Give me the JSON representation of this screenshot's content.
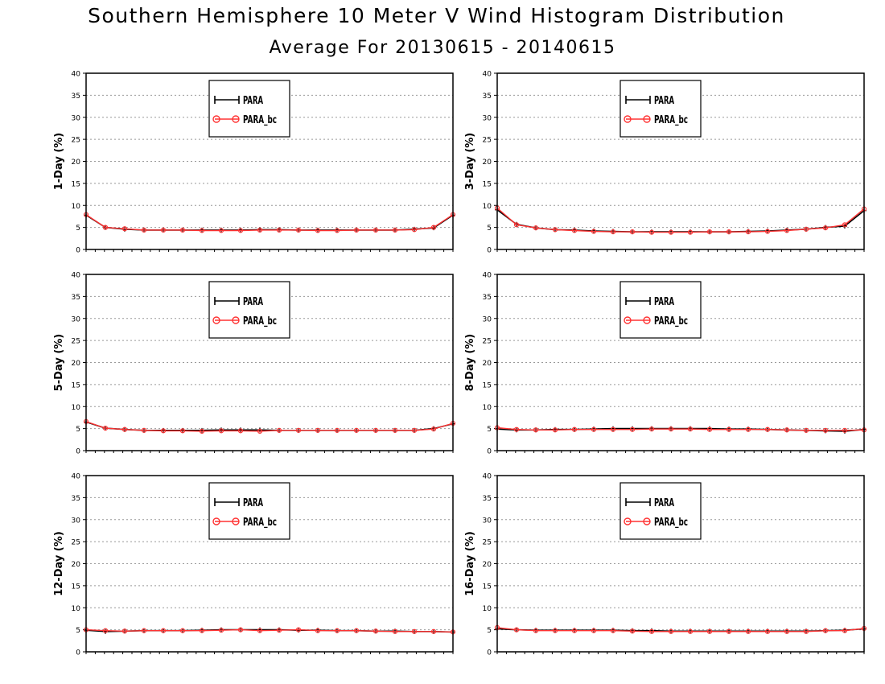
{
  "title": "Southern Hemisphere 10 Meter V Wind Histogram Distribution",
  "subtitle": "Average For 20130615 - 20140615",
  "colors": {
    "para": "#000000",
    "para_bc": "#ff3333",
    "grid": "#999999"
  },
  "chart_data": [
    {
      "type": "line",
      "ylabel": "1-Day (%)",
      "ylim": [
        0,
        40
      ],
      "yticks": [
        0,
        5,
        10,
        15,
        20,
        25,
        30,
        35,
        40
      ],
      "grid": true,
      "legend": "top-center",
      "series": [
        {
          "name": "PARA",
          "values": [
            7.8,
            5.0,
            4.6,
            4.4,
            4.4,
            4.4,
            4.4,
            4.4,
            4.4,
            4.5,
            4.5,
            4.4,
            4.4,
            4.4,
            4.4,
            4.4,
            4.4,
            4.6,
            4.9,
            7.8
          ]
        },
        {
          "name": "PARA_bc",
          "values": [
            7.9,
            5.0,
            4.7,
            4.4,
            4.4,
            4.4,
            4.3,
            4.3,
            4.3,
            4.4,
            4.4,
            4.4,
            4.3,
            4.3,
            4.4,
            4.4,
            4.4,
            4.5,
            5.0,
            7.9
          ]
        }
      ]
    },
    {
      "type": "line",
      "ylabel": "3-Day (%)",
      "ylim": [
        0,
        40
      ],
      "yticks": [
        0,
        5,
        10,
        15,
        20,
        25,
        30,
        35,
        40
      ],
      "grid": true,
      "legend": "top-center",
      "series": [
        {
          "name": "PARA",
          "values": [
            9.0,
            5.7,
            4.9,
            4.5,
            4.4,
            4.2,
            4.1,
            4.0,
            4.0,
            4.0,
            4.0,
            4.0,
            4.0,
            4.1,
            4.2,
            4.4,
            4.6,
            5.0,
            5.3,
            8.8
          ]
        },
        {
          "name": "PARA_bc",
          "values": [
            9.4,
            5.6,
            4.9,
            4.5,
            4.3,
            4.1,
            4.0,
            4.0,
            3.9,
            3.9,
            3.9,
            4.0,
            4.0,
            4.0,
            4.1,
            4.3,
            4.6,
            4.9,
            5.6,
            9.2
          ]
        }
      ]
    },
    {
      "type": "line",
      "ylabel": "5-Day (%)",
      "ylim": [
        0,
        40
      ],
      "yticks": [
        0,
        5,
        10,
        15,
        20,
        25,
        30,
        35,
        40
      ],
      "grid": true,
      "legend": "top-center",
      "series": [
        {
          "name": "PARA",
          "values": [
            6.5,
            5.1,
            4.8,
            4.6,
            4.6,
            4.6,
            4.6,
            4.7,
            4.7,
            4.7,
            4.6,
            4.6,
            4.6,
            4.6,
            4.6,
            4.6,
            4.6,
            4.6,
            5.0,
            6.1
          ]
        },
        {
          "name": "PARA_bc",
          "values": [
            6.6,
            5.1,
            4.8,
            4.6,
            4.5,
            4.5,
            4.4,
            4.5,
            4.5,
            4.4,
            4.6,
            4.6,
            4.6,
            4.6,
            4.6,
            4.6,
            4.6,
            4.6,
            4.9,
            6.2
          ]
        }
      ]
    },
    {
      "type": "line",
      "ylabel": "8-Day (%)",
      "ylim": [
        0,
        40
      ],
      "yticks": [
        0,
        5,
        10,
        15,
        20,
        25,
        30,
        35,
        40
      ],
      "grid": true,
      "legend": "top-center",
      "series": [
        {
          "name": "PARA",
          "values": [
            4.9,
            4.7,
            4.7,
            4.8,
            4.8,
            4.9,
            5.0,
            5.0,
            5.0,
            5.0,
            5.0,
            5.0,
            4.9,
            4.9,
            4.8,
            4.7,
            4.6,
            4.5,
            4.4,
            4.8
          ]
        },
        {
          "name": "PARA_bc",
          "values": [
            5.2,
            4.8,
            4.7,
            4.7,
            4.8,
            4.8,
            4.8,
            4.8,
            4.9,
            4.9,
            4.9,
            4.8,
            4.8,
            4.8,
            4.8,
            4.7,
            4.6,
            4.6,
            4.6,
            4.7
          ]
        }
      ]
    },
    {
      "type": "line",
      "ylabel": "12-Day (%)",
      "ylim": [
        0,
        40
      ],
      "yticks": [
        0,
        5,
        10,
        15,
        20,
        25,
        30,
        35,
        40
      ],
      "grid": true,
      "legend": "top-center",
      "series": [
        {
          "name": "PARA",
          "values": [
            4.9,
            4.6,
            4.7,
            4.8,
            4.8,
            4.8,
            4.9,
            5.0,
            5.0,
            5.0,
            5.0,
            4.9,
            4.9,
            4.8,
            4.8,
            4.7,
            4.7,
            4.6,
            4.6,
            4.5
          ]
        },
        {
          "name": "PARA_bc",
          "values": [
            5.0,
            4.8,
            4.7,
            4.8,
            4.8,
            4.8,
            4.8,
            4.9,
            5.0,
            4.8,
            4.9,
            5.0,
            4.8,
            4.8,
            4.8,
            4.7,
            4.6,
            4.6,
            4.6,
            4.5
          ]
        }
      ]
    },
    {
      "type": "line",
      "ylabel": "16-Day (%)",
      "ylim": [
        0,
        40
      ],
      "yticks": [
        0,
        5,
        10,
        15,
        20,
        25,
        30,
        35,
        40
      ],
      "grid": true,
      "legend": "top-center",
      "series": [
        {
          "name": "PARA",
          "values": [
            5.2,
            5.0,
            4.9,
            4.9,
            4.9,
            4.9,
            4.9,
            4.8,
            4.8,
            4.7,
            4.7,
            4.7,
            4.7,
            4.7,
            4.7,
            4.7,
            4.7,
            4.8,
            4.9,
            5.2
          ]
        },
        {
          "name": "PARA_bc",
          "values": [
            5.5,
            5.0,
            4.8,
            4.8,
            4.8,
            4.8,
            4.8,
            4.7,
            4.6,
            4.6,
            4.6,
            4.6,
            4.6,
            4.6,
            4.6,
            4.6,
            4.6,
            4.8,
            4.8,
            5.3
          ]
        }
      ]
    }
  ]
}
